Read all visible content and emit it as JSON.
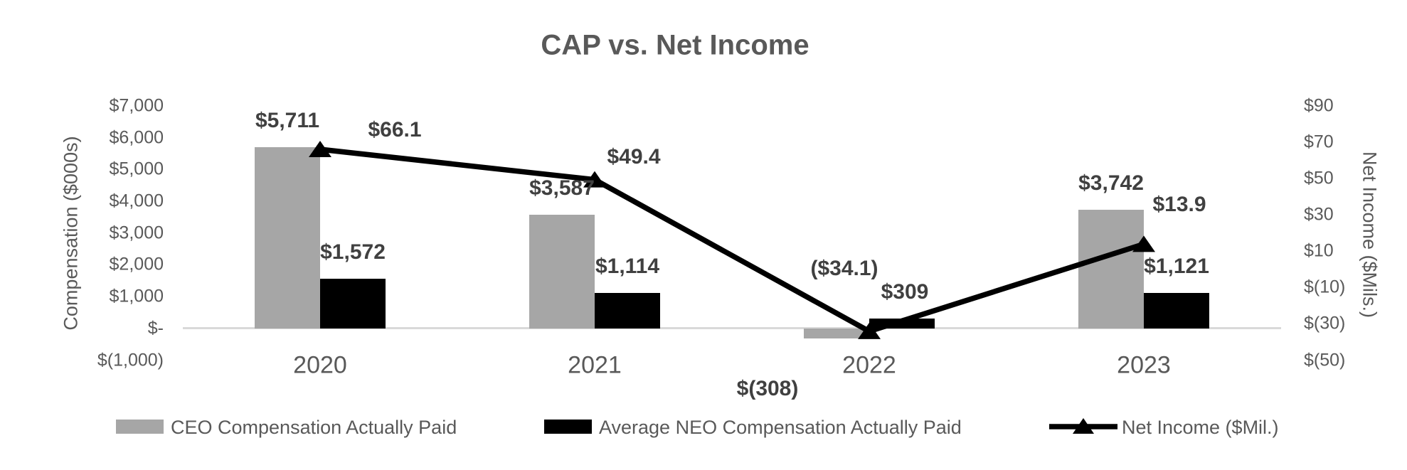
{
  "chart_data": {
    "type": "bar",
    "subtype": "bar-line-combo",
    "title": "CAP vs. Net Income",
    "categories": [
      "2020",
      "2021",
      "2022",
      "2023"
    ],
    "series": [
      {
        "name": "CEO Compensation Actually Paid",
        "render": "bar",
        "axis": "left",
        "color": "#a6a6a6",
        "values": [
          5711,
          3587,
          -308,
          3742
        ],
        "labels": [
          "$5,711",
          "$3,587",
          "$(308)",
          "$3,742"
        ]
      },
      {
        "name": "Average NEO Compensation Actually Paid",
        "render": "bar",
        "axis": "left",
        "color": "#000000",
        "values": [
          1572,
          1114,
          309,
          1121
        ],
        "labels": [
          "$1,572",
          "$1,114",
          "$309",
          "$1,121"
        ]
      },
      {
        "name": "Net Income ($Mil.)",
        "render": "line",
        "axis": "right",
        "color": "#000000",
        "marker": "triangle",
        "values": [
          66.1,
          49.4,
          -34.1,
          13.9
        ],
        "labels": [
          "$66.1",
          "$49.4",
          "($34.1)",
          "$13.9"
        ]
      }
    ],
    "left_axis": {
      "title": "Compensation ($000s)",
      "min": -1000,
      "max": 7000,
      "ticks": [
        {
          "value": 7000,
          "label": "$7,000"
        },
        {
          "value": 6000,
          "label": "$6,000"
        },
        {
          "value": 5000,
          "label": "$5,000"
        },
        {
          "value": 4000,
          "label": "$4,000"
        },
        {
          "value": 3000,
          "label": "$3,000"
        },
        {
          "value": 2000,
          "label": "$2,000"
        },
        {
          "value": 1000,
          "label": "$1,000"
        },
        {
          "value": 0,
          "label": "$-"
        },
        {
          "value": -1000,
          "label": "$(1,000)"
        }
      ]
    },
    "right_axis": {
      "title": "Net Income ($Mils.)",
      "min": -50,
      "max": 90,
      "ticks": [
        {
          "value": 90,
          "label": "$90"
        },
        {
          "value": 70,
          "label": "$70"
        },
        {
          "value": 50,
          "label": "$50"
        },
        {
          "value": 30,
          "label": "$30"
        },
        {
          "value": 10,
          "label": "$10"
        },
        {
          "value": -10,
          "label": "$(10)"
        },
        {
          "value": -30,
          "label": "$(30)"
        },
        {
          "value": -50,
          "label": "$(50)"
        }
      ]
    },
    "legend": {
      "position": "bottom",
      "entries": [
        "CEO Compensation Actually Paid",
        "Average NEO Compensation Actually Paid",
        "Net Income ($Mil.)"
      ]
    },
    "layout_hints": {
      "grid": false,
      "axis_line_color": "#d9d9d9",
      "title_color": "#595959",
      "data_label_color": "#404040",
      "label_offsets": [
        [
          [
            0,
            -37
          ],
          [
            0,
            -37
          ],
          [
            -97,
            71
          ],
          [
            0,
            -37
          ]
        ],
        [
          [
            0,
            -37
          ],
          [
            0,
            -37
          ],
          [
            4,
            -37
          ],
          [
            0,
            -37
          ]
        ],
        [
          [
            105,
            -27
          ],
          [
            55,
            -32
          ],
          [
            -35,
            -88
          ],
          [
            50,
            -55
          ]
        ]
      ]
    }
  }
}
